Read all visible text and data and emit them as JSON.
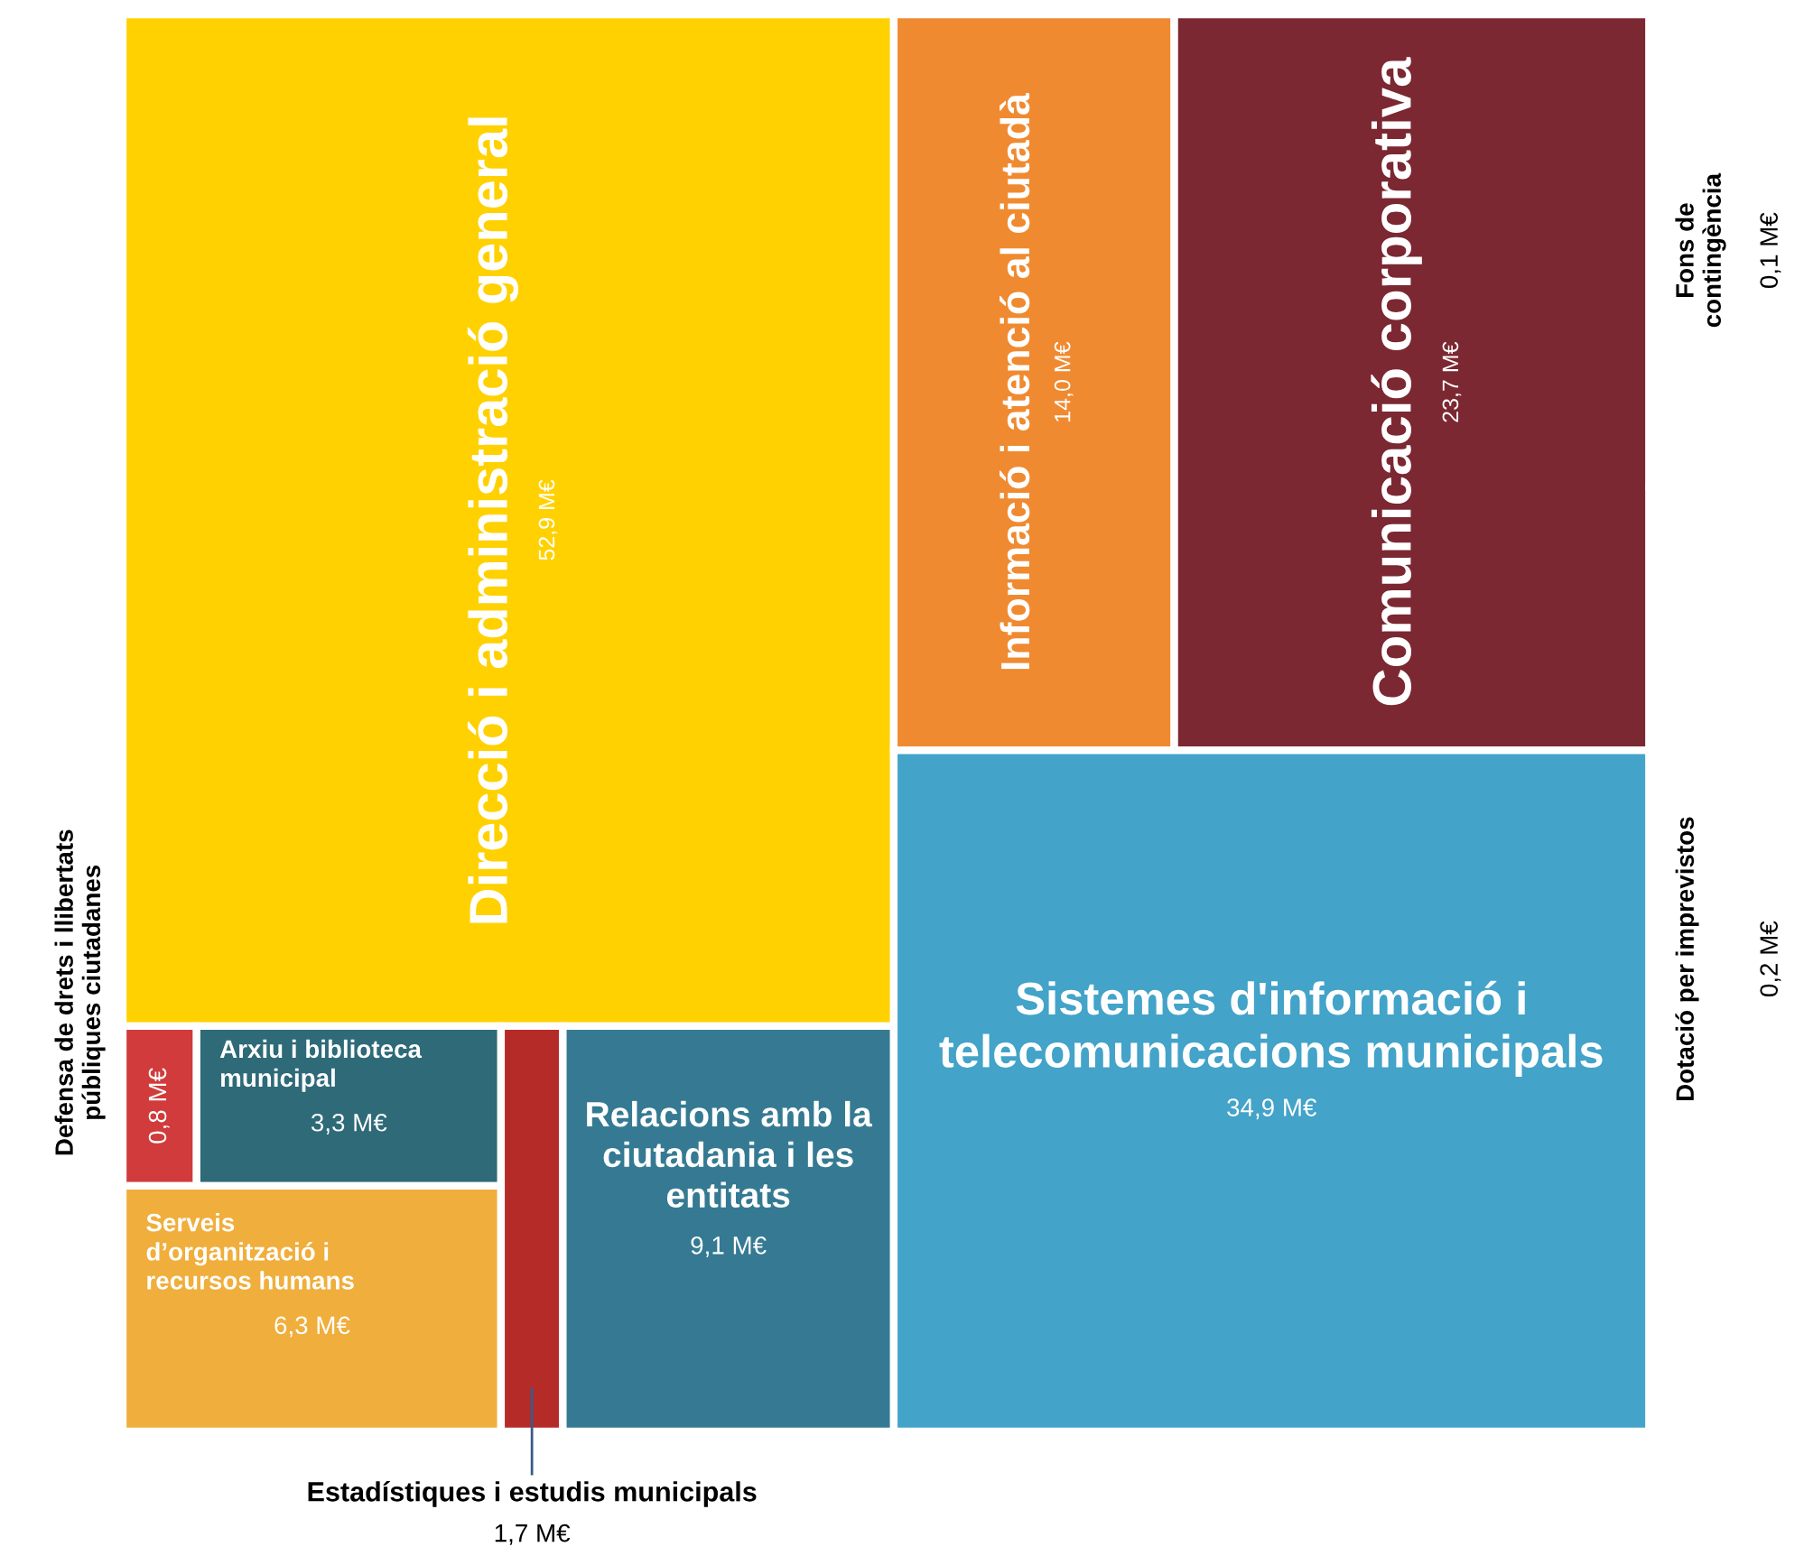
{
  "chart_data": {
    "type": "other",
    "categories": [
      "Direcció i administració general",
      "Defensa de drets i llibertats\npúbliques ciutadanes",
      "Arxiu i biblioteca\nmunicipal",
      "Serveis\nd’organització i\nrecursos humans",
      "Estadístiques i estudis municipals",
      "Relacions amb la\nciutadania i les\nentitats",
      "Informació i atenció al ciutadà",
      "Comunicació corporativa",
      "Sistemes d'informació i\ntelecomunicacions municipals",
      "Fons de\ncontingència",
      "Dotació per imprevistos"
    ],
    "values": [
      52.9,
      0.8,
      3.3,
      6.3,
      1.7,
      9.1,
      14.0,
      23.7,
      34.9,
      0.1,
      0.2
    ],
    "value_labels": [
      "52,9 M€",
      "0,8 M€",
      "3,3 M€",
      "6,3 M€",
      "1,7 M€",
      "9,1 M€",
      "14,0 M€",
      "23,7 M€",
      "34,9 M€",
      "0,1 M€",
      "0,2 M€"
    ],
    "colors": [
      "#ffd100",
      "#d13b3b",
      "#2e6a78",
      "#f0ae3c",
      "#b52b27",
      "#357a92",
      "#f08a30",
      "#7b2832",
      "#43a3c8",
      "#e05050",
      "#c0506a"
    ]
  }
}
